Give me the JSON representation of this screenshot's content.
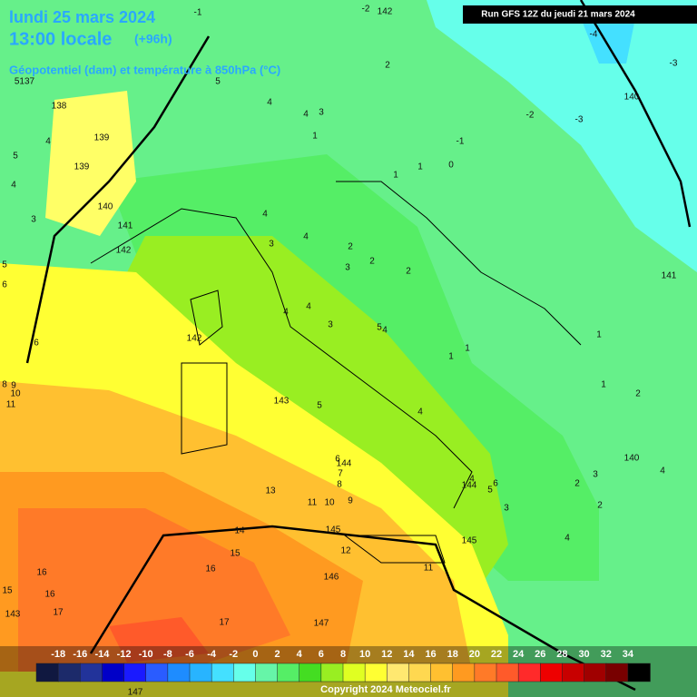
{
  "header": {
    "date": "lundi 25 mars 2024",
    "time": "13:00 locale",
    "lead": "(+96h)",
    "subtitle": "Géopotentiel (dam) et température à 850hPa (°C)",
    "run": "Run GFS 12Z du jeudi 21 mars 2024"
  },
  "colorbar": {
    "labels": [
      -18,
      -16,
      -14,
      -12,
      -10,
      -8,
      -6,
      -4,
      -2,
      0,
      2,
      4,
      6,
      8,
      10,
      12,
      14,
      16,
      18,
      20,
      22,
      24,
      26,
      28,
      30,
      32,
      34
    ],
    "colors": [
      "#101840",
      "#1c2a6a",
      "#22339a",
      "#0000c8",
      "#1a1aff",
      "#2a5cff",
      "#1e8cff",
      "#28b4ff",
      "#44e0ff",
      "#66ffea",
      "#66f5a8",
      "#55ee66",
      "#44dd22",
      "#99ee22",
      "#e0ff22",
      "#ffff33",
      "#ffe870",
      "#ffd850",
      "#ffc030",
      "#ff9a20",
      "#ff7a28",
      "#ff5a2a",
      "#ff2a2a",
      "#ee0000",
      "#c80000",
      "#a00000",
      "#780000",
      "#000000"
    ]
  },
  "map": {
    "temperature_labels": [
      -1,
      -2,
      -4,
      -3,
      2,
      5,
      4,
      4,
      3,
      -2,
      -3,
      -1,
      1,
      0,
      1,
      1,
      4,
      5,
      4,
      3,
      4,
      3,
      4,
      2,
      2,
      3,
      2,
      5,
      6,
      4,
      4,
      5,
      4,
      3,
      1,
      1,
      1,
      1,
      2,
      6,
      5,
      4,
      6,
      7,
      8,
      4,
      5,
      6,
      3,
      2,
      2,
      4,
      3,
      4,
      13,
      11,
      10,
      9,
      14,
      15,
      16,
      12,
      11,
      16,
      15,
      16,
      17,
      17,
      10,
      9,
      8,
      11
    ],
    "geopotential_labels": [
      142,
      140,
      141,
      138,
      139,
      139,
      140,
      141,
      142,
      142,
      143,
      144,
      144,
      145,
      145,
      146,
      147,
      140,
      143,
      147,
      5137
    ]
  },
  "footer": "Copyright 2024 Meteociel.fr"
}
